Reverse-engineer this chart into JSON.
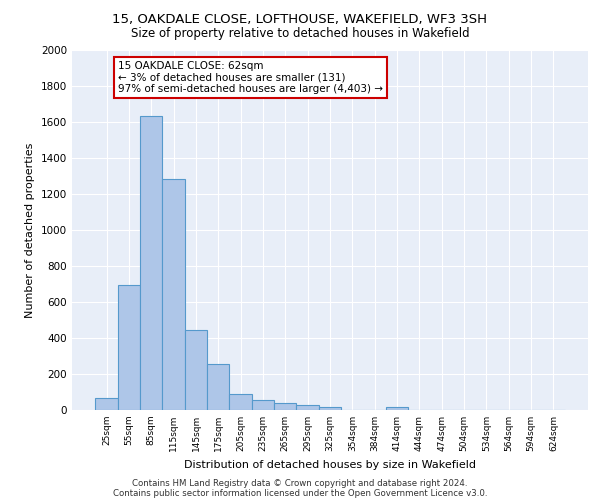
{
  "title_line1": "15, OAKDALE CLOSE, LOFTHOUSE, WAKEFIELD, WF3 3SH",
  "title_line2": "Size of property relative to detached houses in Wakefield",
  "xlabel": "Distribution of detached houses by size in Wakefield",
  "ylabel": "Number of detached properties",
  "bar_color": "#aec6e8",
  "bar_edge_color": "#5599cc",
  "categories": [
    "25sqm",
    "55sqm",
    "85sqm",
    "115sqm",
    "145sqm",
    "175sqm",
    "205sqm",
    "235sqm",
    "265sqm",
    "295sqm",
    "325sqm",
    "354sqm",
    "384sqm",
    "414sqm",
    "444sqm",
    "474sqm",
    "504sqm",
    "534sqm",
    "564sqm",
    "594sqm",
    "624sqm"
  ],
  "values": [
    65,
    695,
    1635,
    1285,
    445,
    255,
    90,
    55,
    38,
    28,
    18,
    0,
    0,
    18,
    0,
    0,
    0,
    0,
    0,
    0,
    0
  ],
  "ylim": [
    0,
    2000
  ],
  "yticks": [
    0,
    200,
    400,
    600,
    800,
    1000,
    1200,
    1400,
    1600,
    1800,
    2000
  ],
  "annotation_text": "15 OAKDALE CLOSE: 62sqm\n← 3% of detached houses are smaller (131)\n97% of semi-detached houses are larger (4,403) →",
  "annotation_box_color": "#ffffff",
  "annotation_box_edge": "#cc0000",
  "footer_line1": "Contains HM Land Registry data © Crown copyright and database right 2024.",
  "footer_line2": "Contains public sector information licensed under the Open Government Licence v3.0.",
  "background_color": "#ffffff",
  "plot_bg_color": "#e8eef8"
}
